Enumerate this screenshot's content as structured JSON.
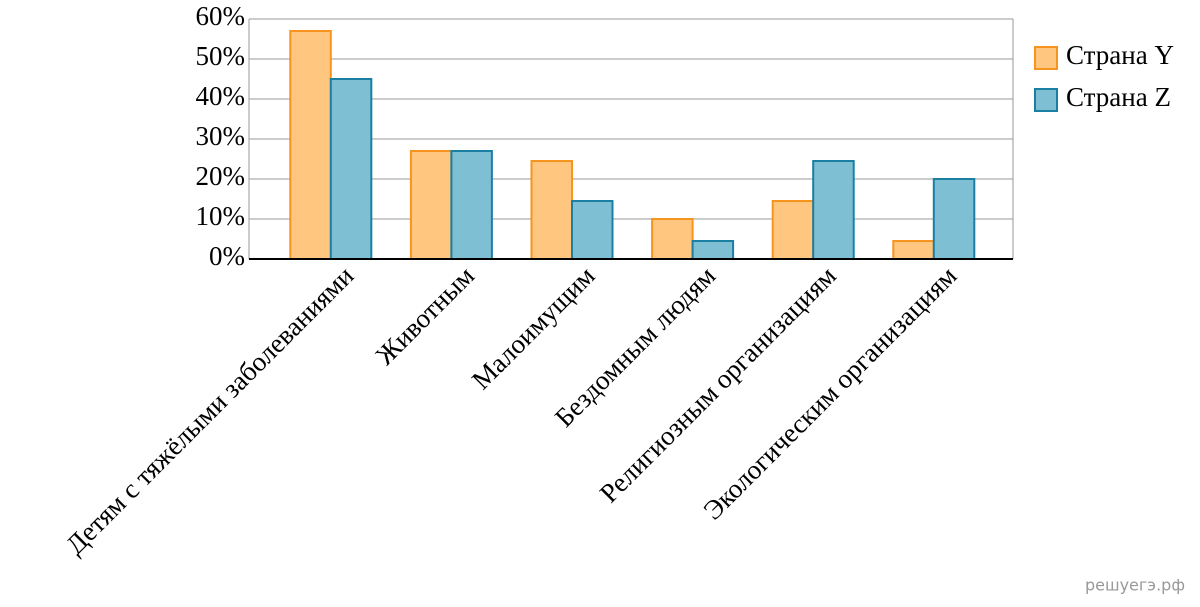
{
  "chart_data": {
    "type": "bar",
    "categories": [
      "Детям с тяжёлыми заболеваниями",
      "Животным",
      "Малоимущим",
      "Бездомным людям",
      "Религиозным организациям",
      "Экологическим организациям"
    ],
    "series": [
      {
        "name": "Страна Y",
        "color": "#ffc680",
        "edge_color": "#f7941d",
        "values": [
          57,
          27,
          24.5,
          10,
          14.5,
          4.5
        ]
      },
      {
        "name": "Страна Z",
        "color": "#7fbfd4",
        "edge_color": "#1b7fa3",
        "values": [
          45,
          27,
          14.5,
          4.5,
          24.5,
          20
        ]
      }
    ],
    "ylim": [
      0,
      60
    ],
    "yticks": [
      {
        "value": 0,
        "label": "0%"
      },
      {
        "value": 10,
        "label": "10%"
      },
      {
        "value": 20,
        "label": "20%"
      },
      {
        "value": 30,
        "label": "30%"
      },
      {
        "value": 40,
        "label": "40%"
      },
      {
        "value": 50,
        "label": "50%"
      },
      {
        "value": 60,
        "label": "60%"
      }
    ],
    "grid": true,
    "legend": "right",
    "watermark": "решуегэ.рф"
  }
}
